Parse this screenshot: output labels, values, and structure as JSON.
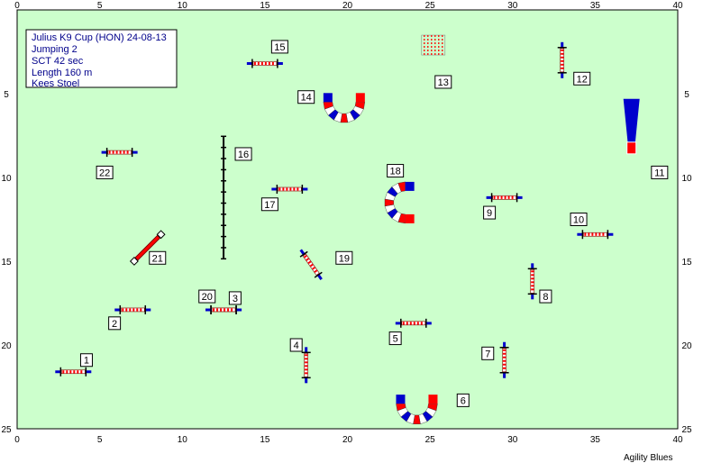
{
  "course_info": {
    "title": "Julius K9 Cup (HON) 24-08-13",
    "class": "Jumping 2",
    "sct": "SCT 42 sec",
    "length": "Length 160 m",
    "judge": "Kees Stoel"
  },
  "footer": {
    "brand": "Agility Blues"
  },
  "arena": {
    "width_m": 40,
    "height_m": 25,
    "tick_step": 5,
    "background": "#ccffcc",
    "border": "#000000"
  },
  "colors": {
    "bar_red": "#ff0000",
    "bar_white": "#ffffff",
    "wing_blue": "#0000cc",
    "stand": "#000000"
  },
  "obstacles": [
    {
      "number": "1",
      "type": "jump",
      "x": 3.4,
      "y": 21.6,
      "angle": 0,
      "label_x": 4.2,
      "label_y": 20.9
    },
    {
      "number": "2",
      "type": "jump",
      "x": 7.0,
      "y": 17.9,
      "angle": 0,
      "label_x": 5.9,
      "label_y": 18.7
    },
    {
      "number": "3",
      "type": "jump",
      "x": 12.5,
      "y": 17.9,
      "angle": 0,
      "label_x": 13.2,
      "label_y": 17.2
    },
    {
      "number": "4",
      "type": "jump",
      "x": 17.5,
      "y": 21.2,
      "angle": 90,
      "label_x": 16.9,
      "label_y": 20.0
    },
    {
      "number": "5",
      "type": "jump",
      "x": 24.0,
      "y": 18.7,
      "angle": 0,
      "label_x": 22.9,
      "label_y": 19.6
    },
    {
      "number": "6",
      "type": "tunnel",
      "x": 24.2,
      "y": 23.5,
      "angle": 0,
      "label_x": 27.0,
      "label_y": 23.3
    },
    {
      "number": "7",
      "type": "jump",
      "x": 29.5,
      "y": 20.9,
      "angle": 90,
      "label_x": 28.5,
      "label_y": 20.5
    },
    {
      "number": "8",
      "type": "jump",
      "x": 31.2,
      "y": 16.2,
      "angle": 90,
      "label_x": 32.0,
      "label_y": 17.1
    },
    {
      "number": "9",
      "type": "jump",
      "x": 29.5,
      "y": 11.2,
      "angle": 0,
      "label_x": 28.6,
      "label_y": 12.1
    },
    {
      "number": "10",
      "type": "jump",
      "x": 35.0,
      "y": 13.4,
      "angle": 0,
      "label_x": 34.0,
      "label_y": 12.5
    },
    {
      "number": "11",
      "type": "tire",
      "x": 37.2,
      "y": 8.0,
      "angle": 0,
      "label_x": 38.9,
      "label_y": 9.7
    },
    {
      "number": "12",
      "type": "jump",
      "x": 33.0,
      "y": 3.0,
      "angle": 90,
      "label_x": 34.2,
      "label_y": 4.1
    },
    {
      "number": "13",
      "type": "weave_box",
      "x": 25.2,
      "y": 2.1,
      "angle": 0,
      "label_x": 25.8,
      "label_y": 4.3
    },
    {
      "number": "14",
      "type": "tunnel",
      "x": 19.8,
      "y": 5.5,
      "angle": 0,
      "label_x": 17.5,
      "label_y": 5.2
    },
    {
      "number": "15",
      "type": "jump",
      "x": 15.0,
      "y": 3.2,
      "angle": 0,
      "label_x": 15.9,
      "label_y": 2.2
    },
    {
      "number": "16",
      "type": "weave",
      "x": 12.5,
      "y": 11.2,
      "angle": 90,
      "label_x": 13.7,
      "label_y": 8.6
    },
    {
      "number": "17",
      "type": "jump",
      "x": 16.5,
      "y": 10.7,
      "angle": 0,
      "label_x": 15.3,
      "label_y": 11.6
    },
    {
      "number": "18",
      "type": "tunnel",
      "x": 23.5,
      "y": 11.5,
      "angle": 90,
      "label_x": 22.9,
      "label_y": 9.6
    },
    {
      "number": "19",
      "type": "jump",
      "x": 17.8,
      "y": 15.2,
      "angle": 55,
      "label_x": 19.8,
      "label_y": 14.8
    },
    {
      "number": "20",
      "type": "jump",
      "x": 12.5,
      "y": 17.9,
      "angle": 0,
      "label_x": 11.5,
      "label_y": 17.1
    },
    {
      "number": "21",
      "type": "jump_red",
      "x": 7.9,
      "y": 14.2,
      "angle": -45,
      "label_x": 8.5,
      "label_y": 14.8
    },
    {
      "number": "22",
      "type": "jump",
      "x": 6.2,
      "y": 8.5,
      "angle": 0,
      "label_x": 5.3,
      "label_y": 9.7
    }
  ]
}
